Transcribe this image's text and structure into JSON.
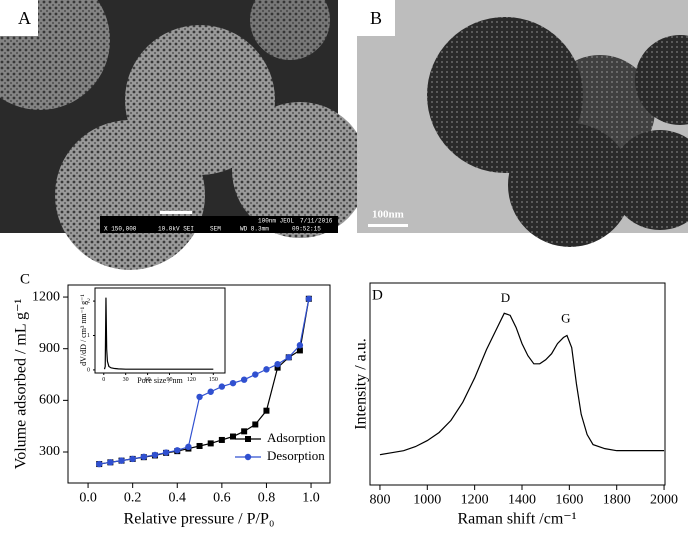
{
  "panels": {
    "a": {
      "label": "A",
      "info": [
        "X 150,000",
        "10.0kV SEI",
        "SEM",
        "WD 8.3mm",
        "09:52:15",
        "100nm JEOL",
        "7/11/2016"
      ]
    },
    "b": {
      "label": "B",
      "scale": "100nm"
    }
  },
  "chart_data": [
    {
      "type": "line",
      "panel_label": "C",
      "xlabel": "Relative pressure / P/P₀",
      "ylabel": "Volume adsorbed / mL g⁻¹",
      "x": [
        0.05,
        0.1,
        0.15,
        0.2,
        0.25,
        0.3,
        0.35,
        0.4,
        0.45,
        0.5,
        0.55,
        0.6,
        0.65,
        0.7,
        0.75,
        0.8,
        0.85,
        0.9,
        0.95,
        0.99
      ],
      "series": [
        {
          "name": "Adsorption",
          "color": "#000000",
          "marker": "square",
          "values": [
            230,
            240,
            250,
            260,
            270,
            280,
            295,
            305,
            320,
            335,
            350,
            370,
            390,
            420,
            460,
            540,
            790,
            850,
            890,
            1190
          ]
        },
        {
          "name": "Desorption",
          "color": "#3050d0",
          "marker": "circle",
          "values": [
            230,
            240,
            250,
            260,
            272,
            283,
            297,
            310,
            330,
            620,
            650,
            680,
            700,
            720,
            750,
            780,
            810,
            850,
            920,
            1190
          ]
        }
      ],
      "xlim": [
        -0.09,
        1.085
      ],
      "ylim": [
        120,
        1270
      ],
      "xticks": [
        {
          "value": 0,
          "label": "0.0"
        },
        0.2,
        0.4,
        0.6,
        0.8,
        {
          "value": 1,
          "label": "1.0"
        }
      ],
      "yticks": [
        300,
        600,
        900,
        1200
      ],
      "legend": "lower right"
    },
    {
      "type": "line",
      "xlabel": "Pore size / nm",
      "ylabel": "dV/dD / cm³ nm⁻¹ g⁻¹",
      "x": [
        1,
        2,
        3,
        4,
        5,
        7,
        10,
        15,
        20,
        30,
        40,
        60,
        90,
        120,
        150
      ],
      "series": [
        {
          "color": "#000000",
          "values": [
            0.02,
            0.1,
            2.1,
            0.6,
            0.25,
            0.1,
            0.06,
            0.04,
            0.03,
            0.02,
            0.02,
            0.02,
            0.02,
            0.02,
            0.02
          ]
        }
      ],
      "xlim": [
        -12,
        166
      ],
      "ylim": [
        -0.09,
        2.38
      ],
      "xticks": [
        0,
        30,
        60,
        90,
        120,
        150
      ],
      "yticks": [
        0,
        1,
        2
      ]
    },
    {
      "type": "line",
      "panel_label": "D",
      "xlabel": "Raman shift /cm⁻¹",
      "ylabel": "Intensity / a.u.",
      "x": [
        800,
        850,
        900,
        950,
        1000,
        1050,
        1100,
        1150,
        1200,
        1250,
        1300,
        1325,
        1350,
        1375,
        1400,
        1425,
        1450,
        1475,
        1500,
        1525,
        1550,
        1575,
        1590,
        1610,
        1630,
        1650,
        1675,
        1700,
        1750,
        1800,
        1850,
        1900,
        1950,
        2000
      ],
      "series": [
        {
          "color": "#000000",
          "values": [
            0.15,
            0.16,
            0.17,
            0.19,
            0.22,
            0.26,
            0.32,
            0.41,
            0.53,
            0.67,
            0.79,
            0.85,
            0.84,
            0.78,
            0.7,
            0.64,
            0.6,
            0.6,
            0.62,
            0.65,
            0.7,
            0.73,
            0.74,
            0.68,
            0.5,
            0.35,
            0.25,
            0.2,
            0.18,
            0.17,
            0.17,
            0.17,
            0.17,
            0.17
          ]
        }
      ],
      "xlim": [
        758,
        2004
      ],
      "ylim": [
        0,
        1
      ],
      "xticks": [
        800,
        1000,
        1200,
        1400,
        1600,
        1800,
        2000
      ],
      "annotations": [
        {
          "text": "D",
          "x": 1330,
          "y": 0.92
        },
        {
          "text": "G",
          "x": 1585,
          "y": 0.82
        }
      ]
    }
  ]
}
